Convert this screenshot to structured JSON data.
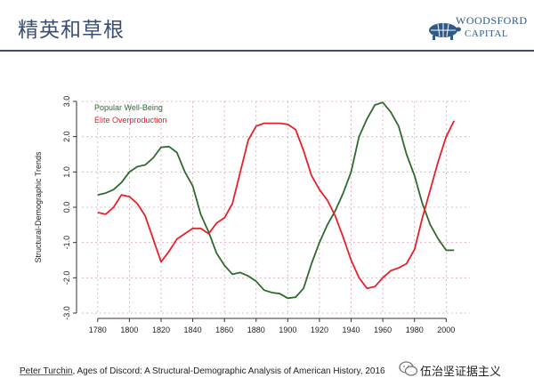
{
  "header": {
    "title": "精英和草根",
    "logo_line1": "WOODSFORD",
    "logo_line2": "CAPITAL"
  },
  "citation": {
    "author": "Peter Turchin",
    "rest": ", Ages of Discord: A Structural-Demographic Analysis of American History, 2016"
  },
  "watermark": {
    "text": "伍治坚证据主义"
  },
  "colors": {
    "green": "#2e6b2e",
    "red": "#e8202a",
    "title": "#3b4d72",
    "grid": "#e0a0c0"
  },
  "chart_data": {
    "type": "line",
    "ylabel": "Structural-Demographic Trends",
    "xlabel": "",
    "xlim": [
      1770,
      2015
    ],
    "ylim": [
      -3.0,
      3.0
    ],
    "xticks": [
      1780,
      1800,
      1820,
      1840,
      1860,
      1880,
      1900,
      1920,
      1940,
      1960,
      1980,
      2000
    ],
    "yticks": [
      "3.0",
      "2.0",
      "1.0",
      "0.0",
      "-1.0",
      "-2.0",
      "-3.0"
    ],
    "ytick_values": [
      3,
      2,
      1,
      0,
      -1,
      -2,
      -3
    ],
    "grid": true,
    "legend_position": "top-left",
    "series": [
      {
        "name": "Popular Well-Being",
        "color": "#2e6b2e",
        "x": [
          1780,
          1785,
          1790,
          1795,
          1800,
          1805,
          1810,
          1815,
          1820,
          1825,
          1830,
          1835,
          1840,
          1845,
          1850,
          1855,
          1860,
          1865,
          1870,
          1875,
          1880,
          1885,
          1890,
          1895,
          1900,
          1905,
          1910,
          1915,
          1920,
          1925,
          1930,
          1935,
          1940,
          1945,
          1950,
          1955,
          1960,
          1965,
          1970,
          1975,
          1980,
          1985,
          1990,
          1995,
          2000,
          2005
        ],
        "y": [
          0.35,
          0.4,
          0.5,
          0.7,
          1.0,
          1.15,
          1.2,
          1.4,
          1.7,
          1.72,
          1.55,
          1.0,
          0.6,
          -0.2,
          -0.7,
          -1.3,
          -1.65,
          -1.9,
          -1.85,
          -1.95,
          -2.1,
          -2.35,
          -2.42,
          -2.45,
          -2.58,
          -2.55,
          -2.3,
          -1.6,
          -1.0,
          -0.5,
          -0.1,
          0.4,
          1.0,
          2.0,
          2.5,
          2.9,
          2.97,
          2.7,
          2.3,
          1.5,
          0.9,
          0.1,
          -0.5,
          -0.9,
          -1.22,
          -1.22
        ]
      },
      {
        "name": "Elite Overproduction",
        "color": "#e8202a",
        "x": [
          1780,
          1785,
          1790,
          1795,
          1800,
          1805,
          1810,
          1815,
          1820,
          1825,
          1830,
          1835,
          1840,
          1845,
          1850,
          1855,
          1860,
          1865,
          1870,
          1875,
          1880,
          1885,
          1890,
          1895,
          1900,
          1905,
          1910,
          1915,
          1920,
          1925,
          1930,
          1935,
          1940,
          1945,
          1950,
          1955,
          1960,
          1965,
          1970,
          1975,
          1980,
          1985,
          1990,
          1995,
          2000,
          2005
        ],
        "y": [
          -0.15,
          -0.2,
          0.0,
          0.35,
          0.3,
          0.1,
          -0.25,
          -0.9,
          -1.55,
          -1.25,
          -0.9,
          -0.75,
          -0.6,
          -0.6,
          -0.75,
          -0.45,
          -0.3,
          0.1,
          1.0,
          1.9,
          2.3,
          2.38,
          2.38,
          2.38,
          2.35,
          2.2,
          1.6,
          0.9,
          0.5,
          0.2,
          -0.25,
          -0.85,
          -1.5,
          -2.0,
          -2.3,
          -2.25,
          -2.0,
          -1.8,
          -1.72,
          -1.6,
          -1.2,
          -0.3,
          0.5,
          1.3,
          2.0,
          2.45
        ]
      }
    ]
  }
}
